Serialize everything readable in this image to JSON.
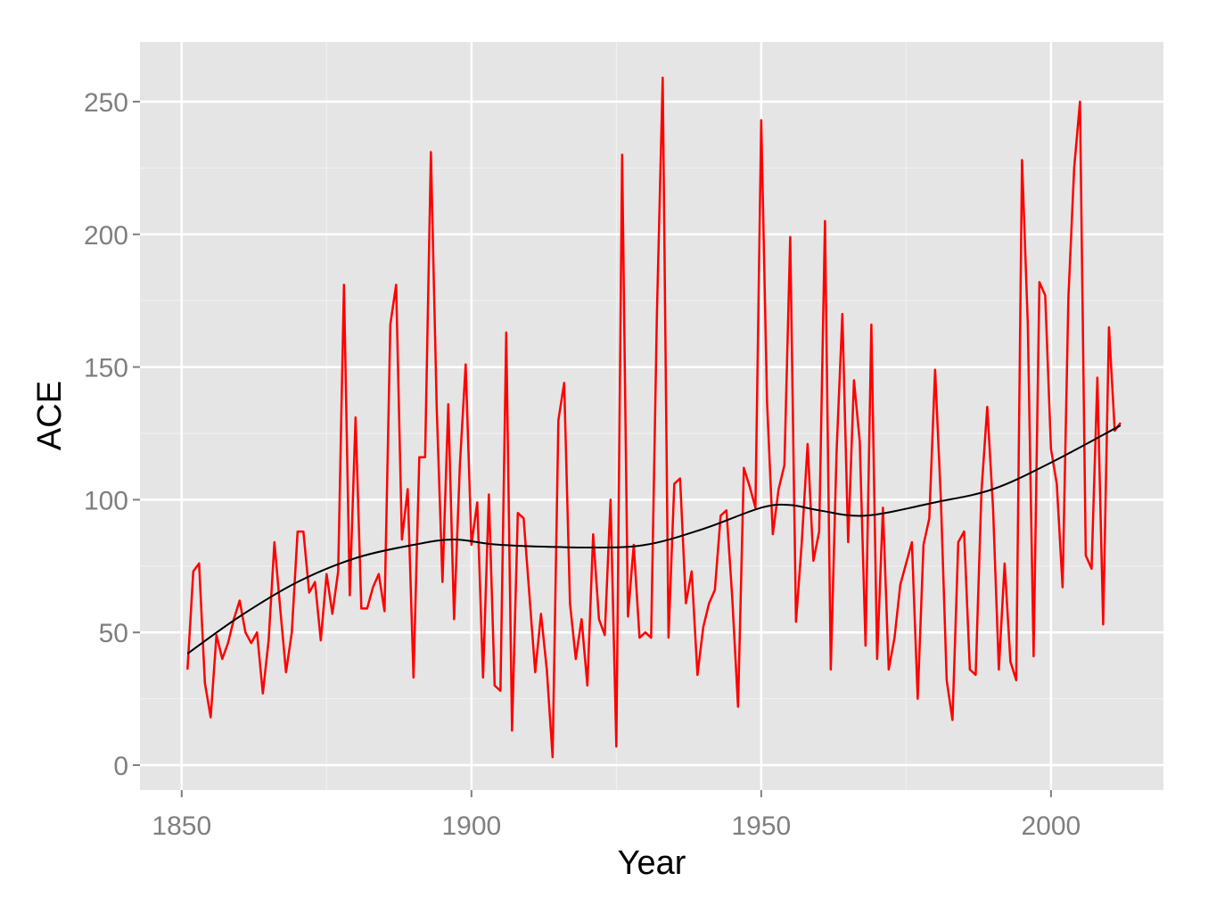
{
  "chart_data": {
    "type": "line",
    "title": "",
    "xlabel": "Year",
    "ylabel": "ACE",
    "xlim": [
      1842.8,
      2019.4
    ],
    "ylim": [
      -9.4,
      272.5
    ],
    "xticks": [
      1850,
      1900,
      1950,
      2000
    ],
    "yticks": [
      0,
      50,
      100,
      150,
      200,
      250
    ],
    "xtick_labels": [
      "1850",
      "1900",
      "1950",
      "2000"
    ],
    "ytick_labels": [
      "0",
      "50",
      "100",
      "150",
      "200",
      "250"
    ],
    "grid": true,
    "colors": {
      "series": "#ff0000",
      "smooth": "#000000",
      "panel": "#e5e5e5",
      "grid": "#ffffff"
    },
    "series": [
      {
        "name": "ACE",
        "x_start": 1851,
        "values": [
          36,
          73,
          76,
          31,
          18,
          49,
          40,
          46,
          55,
          62,
          50,
          46,
          50,
          27,
          47,
          84,
          59,
          35,
          50,
          88,
          88,
          65,
          69,
          47,
          72,
          57,
          73,
          181,
          64,
          131,
          59,
          59,
          67,
          72,
          58,
          166,
          181,
          85,
          104,
          33,
          116,
          116,
          231,
          135,
          69,
          136,
          55,
          113,
          151,
          83,
          99,
          33,
          102,
          30,
          28,
          163,
          13,
          95,
          93,
          64,
          35,
          57,
          36,
          3,
          130,
          144,
          61,
          40,
          55,
          30,
          87,
          55,
          49,
          100,
          7,
          230,
          56,
          83,
          48,
          50,
          48,
          170,
          259,
          48,
          106,
          108,
          61,
          73,
          34,
          52,
          61,
          66,
          94,
          96,
          63,
          22,
          112,
          105,
          97,
          243,
          137,
          87,
          104,
          113,
          199,
          54,
          84,
          121,
          77,
          88,
          205,
          36,
          118,
          170,
          84,
          145,
          122,
          45,
          166,
          40,
          97,
          36,
          48,
          68,
          76,
          84,
          25,
          83,
          93,
          149,
          100,
          32,
          17,
          84,
          88,
          36,
          34,
          103,
          135,
          97,
          36,
          76,
          39,
          32,
          228,
          166,
          41,
          182,
          177,
          119,
          106,
          67,
          176,
          225,
          250,
          79,
          74,
          146,
          53,
          165,
          126,
          129
        ]
      },
      {
        "name": "smooth",
        "x": [
          1851,
          1860,
          1870,
          1880,
          1890,
          1897,
          1905,
          1920,
          1930,
          1940,
          1950,
          1955,
          1960,
          1968,
          1980,
          1990,
          2000,
          2012
        ],
        "values": [
          42,
          56,
          69,
          78,
          83,
          85,
          83,
          82,
          83,
          89,
          97,
          98,
          96,
          94,
          99,
          104,
          114,
          128
        ]
      }
    ]
  }
}
